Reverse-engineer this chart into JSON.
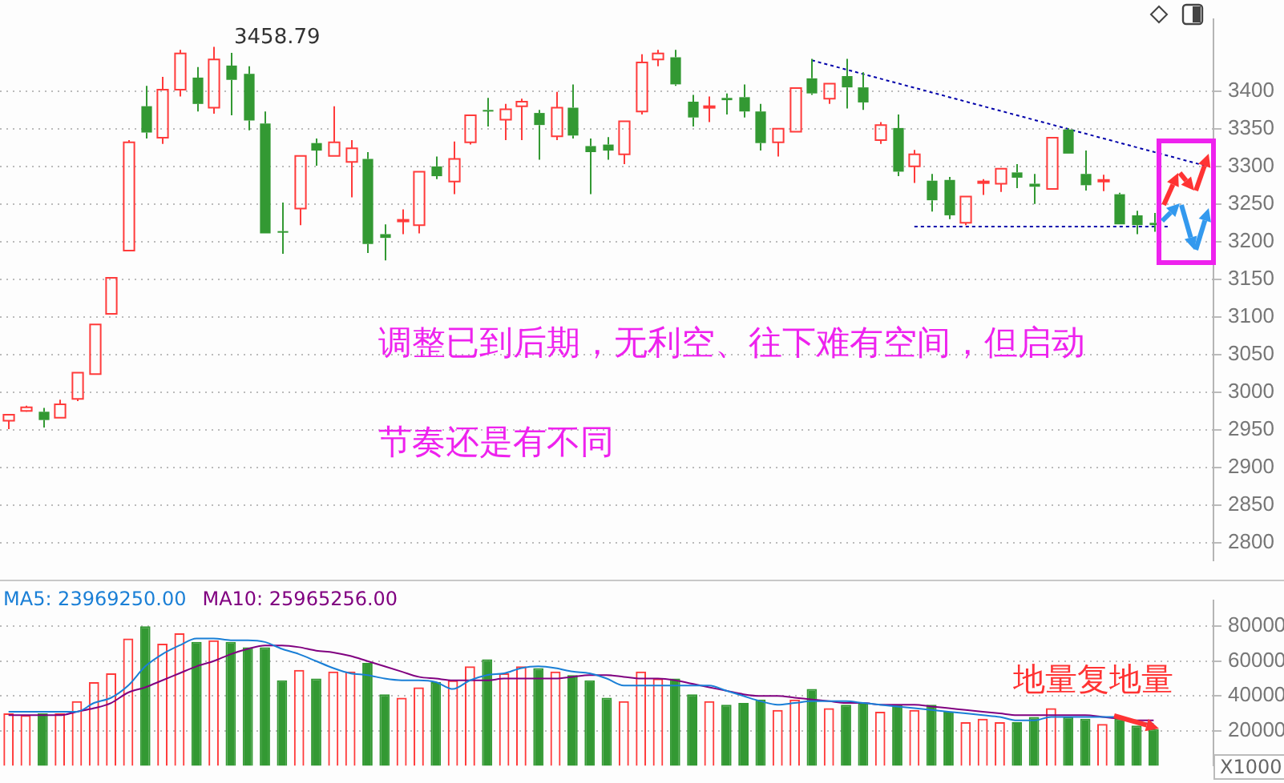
{
  "chart_data": [
    {
      "type": "candlestick",
      "categories": [
        null,
        null,
        null,
        null,
        null,
        null,
        null,
        null,
        null,
        null,
        null,
        null,
        null,
        null,
        null,
        null,
        null,
        null,
        null,
        null,
        null,
        null,
        null,
        null,
        null,
        null,
        null,
        null,
        null,
        null,
        null,
        null,
        null,
        null,
        null,
        null,
        null,
        null,
        null,
        null,
        null,
        null,
        null,
        null,
        null,
        null,
        null,
        null,
        null,
        null,
        null,
        null,
        null,
        null,
        null,
        null,
        null,
        null,
        null,
        null,
        null,
        null,
        null,
        null,
        null,
        null,
        null,
        null,
        null,
        null,
        null
      ],
      "ohlc": [
        [
          2962,
          2970,
          2951,
          2970
        ],
        [
          2975,
          2982,
          2974,
          2980
        ],
        [
          2974,
          2979,
          2953,
          2963
        ],
        [
          2966,
          2990,
          2966,
          2984
        ],
        [
          2991,
          3026,
          2988,
          3026
        ],
        [
          3024,
          3090,
          3024,
          3090
        ],
        [
          3104,
          3152,
          3104,
          3152
        ],
        [
          3188,
          3335,
          3188,
          3332
        ],
        [
          3380,
          3407,
          3337,
          3345
        ],
        [
          3338,
          3419,
          3330,
          3402
        ],
        [
          3402,
          3455,
          3393,
          3450
        ],
        [
          3418,
          3432,
          3373,
          3383
        ],
        [
          3378,
          3458.79,
          3370,
          3442
        ],
        [
          3434,
          3451,
          3368,
          3415
        ],
        [
          3423,
          3433,
          3348,
          3361
        ],
        [
          3357,
          3373,
          3211,
          3211
        ],
        [
          3214,
          3252,
          3184,
          3213
        ],
        [
          3244,
          3314,
          3222,
          3314
        ],
        [
          3331,
          3337,
          3301,
          3321
        ],
        [
          3314,
          3380,
          3314,
          3332
        ],
        [
          3306,
          3335,
          3259,
          3324
        ],
        [
          3310,
          3319,
          3185,
          3197
        ],
        [
          3210,
          3223,
          3175,
          3205
        ],
        [
          3227,
          3243,
          3210,
          3229
        ],
        [
          3222,
          3293,
          3211,
          3293
        ],
        [
          3300,
          3313,
          3283,
          3287
        ],
        [
          3280,
          3333,
          3263,
          3310
        ],
        [
          3332,
          3368,
          3329,
          3368
        ],
        [
          3375,
          3391,
          3353,
          3374
        ],
        [
          3362,
          3383,
          3335,
          3376
        ],
        [
          3380,
          3390,
          3335,
          3386
        ],
        [
          3371,
          3375,
          3309,
          3355
        ],
        [
          3340,
          3399,
          3335,
          3378
        ],
        [
          3378,
          3409,
          3337,
          3341
        ],
        [
          3327,
          3337,
          3263,
          3319
        ],
        [
          3329,
          3339,
          3309,
          3321
        ],
        [
          3316,
          3360,
          3303,
          3360
        ],
        [
          3373,
          3449,
          3369,
          3438
        ],
        [
          3442,
          3455,
          3433,
          3450
        ],
        [
          3445,
          3455,
          3407,
          3409
        ],
        [
          3386,
          3395,
          3353,
          3365
        ],
        [
          3379,
          3393,
          3359,
          3380
        ],
        [
          3391,
          3397,
          3369,
          3388
        ],
        [
          3392,
          3409,
          3365,
          3373
        ],
        [
          3373,
          3383,
          3321,
          3331
        ],
        [
          3332,
          3350,
          3313,
          3350
        ],
        [
          3346,
          3404,
          3346,
          3404
        ],
        [
          3417,
          3443,
          3395,
          3397
        ],
        [
          3390,
          3410,
          3383,
          3410
        ],
        [
          3420,
          3443,
          3377,
          3405
        ],
        [
          3405,
          3425,
          3375,
          3385
        ],
        [
          3335,
          3359,
          3330,
          3355
        ],
        [
          3351,
          3369,
          3287,
          3293
        ],
        [
          3300,
          3322,
          3278,
          3316
        ],
        [
          3281,
          3290,
          3240,
          3255
        ],
        [
          3282,
          3286,
          3230,
          3235
        ],
        [
          3225,
          3260,
          3222,
          3260
        ],
        [
          3278,
          3283,
          3262,
          3280
        ],
        [
          3277,
          3297,
          3266,
          3297
        ],
        [
          3292,
          3303,
          3271,
          3285
        ],
        [
          3277,
          3290,
          3250,
          3273
        ],
        [
          3270,
          3338,
          3270,
          3338
        ],
        [
          3349,
          3351,
          3317,
          3317
        ],
        [
          3290,
          3321,
          3268,
          3275
        ],
        [
          3281,
          3289,
          3267,
          3282
        ],
        [
          3263,
          3265,
          3223,
          3223
        ],
        [
          3235,
          3241,
          3210,
          3222
        ],
        [
          3225,
          3238,
          3213,
          3222
        ],
        null,
        null,
        null
      ],
      "colors": [
        "#ff3b3b",
        "#ff3b3b",
        "#339933",
        "#ff3b3b",
        "#ff3b3b",
        "#ff3b3b",
        "#ff3b3b",
        "#ff3b3b",
        "#339933",
        "#ff3b3b",
        "#ff3b3b",
        "#339933",
        "#ff3b3b",
        "#339933",
        "#339933",
        "#339933",
        "#339933",
        "#ff3b3b",
        "#339933",
        "#ff3b3b",
        "#ff3b3b",
        "#339933",
        "#339933",
        "#ff3b3b",
        "#ff3b3b",
        "#339933",
        "#ff3b3b",
        "#ff3b3b",
        "#339933",
        "#ff3b3b",
        "#ff3b3b",
        "#339933",
        "#ff3b3b",
        "#339933",
        "#339933",
        "#339933",
        "#ff3b3b",
        "#ff3b3b",
        "#ff3b3b",
        "#339933",
        "#339933",
        "#ff3b3b",
        "#339933",
        "#339933",
        "#339933",
        "#ff3b3b",
        "#ff3b3b",
        "#339933",
        "#ff3b3b",
        "#339933",
        "#339933",
        "#ff3b3b",
        "#339933",
        "#ff3b3b",
        "#339933",
        "#339933",
        "#ff3b3b",
        "#ff3b3b",
        "#ff3b3b",
        "#339933",
        "#339933",
        "#ff3b3b",
        "#339933",
        "#339933",
        "#ff3b3b",
        "#339933",
        "#339933",
        "#339933",
        null,
        null,
        null
      ],
      "series": [
        {
          "type": "line",
          "color": "#0000aa",
          "values": [
            null,
            null,
            null,
            null,
            null,
            null,
            null,
            null,
            null,
            null,
            null,
            null,
            null,
            null,
            null,
            null,
            null,
            null,
            null,
            null,
            null,
            null,
            null,
            null,
            null,
            null,
            null,
            null,
            null,
            null,
            null,
            null,
            null,
            null,
            null,
            null,
            null,
            null,
            null,
            null,
            null,
            null,
            null,
            null,
            null,
            null,
            null,
            3441,
            null,
            null,
            null,
            null,
            null,
            null,
            null,
            null,
            null,
            null,
            null,
            null,
            null,
            null,
            null,
            null,
            null,
            null,
            null,
            null,
            null,
            null,
            3301
          ]
        },
        {
          "type": "line",
          "color": "#0000aa",
          "values": [
            null,
            null,
            null,
            null,
            null,
            null,
            null,
            null,
            null,
            null,
            null,
            null,
            null,
            null,
            null,
            null,
            null,
            null,
            null,
            null,
            null,
            null,
            null,
            null,
            null,
            null,
            null,
            null,
            null,
            null,
            null,
            null,
            null,
            null,
            null,
            null,
            null,
            null,
            null,
            null,
            null,
            null,
            null,
            null,
            null,
            null,
            null,
            null,
            null,
            null,
            null,
            null,
            null,
            3220,
            null,
            null,
            null,
            null,
            null,
            null,
            null,
            null,
            null,
            null,
            null,
            null,
            null,
            null,
            3220,
            null,
            null
          ]
        }
      ],
      "line_style": "dashed",
      "marker": "none",
      "ylim": [
        2776,
        3496
      ],
      "yticks": [
        2800,
        2850,
        2900,
        2950,
        3000,
        3050,
        3100,
        3150,
        3200,
        3250,
        3300,
        3350,
        3400
      ],
      "grid": "y",
      "tick_labels": "y",
      "legend": false,
      "annotations": [
        "3458.79",
        "调整已到后期，无利空、往下难有空间，但启动",
        "节奏还是有不同"
      ]
    },
    {
      "type": "bar",
      "categories": [
        null,
        null,
        null,
        null,
        null,
        null,
        null,
        null,
        null,
        null,
        null,
        null,
        null,
        null,
        null,
        null,
        null,
        null,
        null,
        null,
        null,
        null,
        null,
        null,
        null,
        null,
        null,
        null,
        null,
        null,
        null,
        null,
        null,
        null,
        null,
        null,
        null,
        null,
        null,
        null,
        null,
        null,
        null,
        null,
        null,
        null,
        null,
        null,
        null,
        null,
        null,
        null,
        null,
        null,
        null,
        null,
        null,
        null,
        null,
        null,
        null,
        null,
        null,
        null,
        null,
        null,
        null,
        null,
        null,
        null,
        null
      ],
      "series": [
        {
          "type": "bar",
          "colors": [
            "#ff3b3b",
            "#ff3b3b",
            "#339933",
            "#ff3b3b",
            "#ff3b3b",
            "#ff3b3b",
            "#ff3b3b",
            "#ff3b3b",
            "#339933",
            "#ff3b3b",
            "#ff3b3b",
            "#339933",
            "#ff3b3b",
            "#339933",
            "#339933",
            "#339933",
            "#339933",
            "#ff3b3b",
            "#339933",
            "#ff3b3b",
            "#ff3b3b",
            "#339933",
            "#339933",
            "#ff3b3b",
            "#ff3b3b",
            "#339933",
            "#ff3b3b",
            "#ff3b3b",
            "#339933",
            "#ff3b3b",
            "#ff3b3b",
            "#339933",
            "#ff3b3b",
            "#339933",
            "#339933",
            "#339933",
            "#ff3b3b",
            "#ff3b3b",
            "#ff3b3b",
            "#339933",
            "#339933",
            "#ff3b3b",
            "#339933",
            "#339933",
            "#339933",
            "#ff3b3b",
            "#ff3b3b",
            "#339933",
            "#ff3b3b",
            "#339933",
            "#339933",
            "#ff3b3b",
            "#339933",
            "#ff3b3b",
            "#339933",
            "#339933",
            "#ff3b3b",
            "#ff3b3b",
            "#ff3b3b",
            "#339933",
            "#339933",
            "#ff3b3b",
            "#339933",
            "#339933",
            "#ff3b3b",
            "#339933",
            "#339933",
            "#339933",
            "#339933",
            "#339933",
            "#339933"
          ],
          "values": [
            30000,
            29000,
            30000,
            30000,
            37000,
            48000,
            53000,
            73000,
            80000,
            70000,
            76000,
            71000,
            72000,
            71000,
            68000,
            68000,
            49000,
            55000,
            50000,
            54000,
            54000,
            59000,
            41000,
            39000,
            45000,
            48000,
            49000,
            57000,
            61000,
            53000,
            57000,
            56000,
            54000,
            52000,
            49000,
            39000,
            37000,
            54000,
            50000,
            50000,
            41000,
            37000,
            35000,
            36000,
            38000,
            32000,
            38000,
            44000,
            33000,
            35000,
            36000,
            31000,
            35000,
            32000,
            35000,
            31000,
            25000,
            27000,
            25000,
            25000,
            28000,
            33000,
            28000,
            27000,
            24000,
            27000,
            23000,
            21000,
            null,
            null,
            null
          ]
        },
        {
          "type": "line",
          "name": "MA5: 23969250.00",
          "color": "#1a7fd6",
          "values": [
            31000,
            31000,
            31000,
            31000,
            31000,
            36000,
            39000,
            46000,
            57000,
            64000,
            69000,
            73000,
            73000,
            72000,
            72000,
            71000,
            67000,
            64000,
            60000,
            56000,
            53000,
            52000,
            50000,
            49000,
            49000,
            48000,
            44000,
            49000,
            52000,
            53000,
            56000,
            57000,
            56000,
            54000,
            53000,
            50000,
            46000,
            46000,
            46000,
            46000,
            46000,
            46000,
            43000,
            40000,
            37000,
            35000,
            36000,
            37000,
            37000,
            37000,
            36000,
            35000,
            34000,
            33000,
            32000,
            31000,
            30000,
            29000,
            28000,
            26000,
            26000,
            28000,
            28000,
            28000,
            28000,
            28000,
            25000,
            24000,
            null,
            null,
            null
          ]
        },
        {
          "type": "line",
          "name": "MA10: 25965256.00",
          "color": "#800080",
          "values": [
            29000,
            29000,
            29000,
            29000,
            31000,
            33000,
            36000,
            42000,
            45000,
            49000,
            53000,
            57000,
            60000,
            64000,
            67000,
            69000,
            69000,
            68000,
            66000,
            65000,
            63000,
            60000,
            57000,
            54000,
            51000,
            50000,
            49000,
            49000,
            49000,
            50000,
            50000,
            50000,
            50000,
            51000,
            52000,
            52000,
            51000,
            50000,
            50000,
            49000,
            47000,
            45000,
            43000,
            41000,
            40000,
            40000,
            39000,
            38000,
            37000,
            36000,
            36000,
            35000,
            35000,
            35000,
            34000,
            33000,
            32000,
            31000,
            30000,
            29000,
            29000,
            29000,
            29000,
            29000,
            28000,
            27000,
            26000,
            26000,
            null,
            null,
            null
          ]
        }
      ],
      "ylim": [
        0,
        95000
      ],
      "yticks": [
        20000,
        40000,
        60000,
        80000
      ],
      "grid": "y",
      "tick_labels": "y",
      "legend": "top left",
      "annotations": [
        "地量复地量",
        "X1000"
      ]
    }
  ]
}
